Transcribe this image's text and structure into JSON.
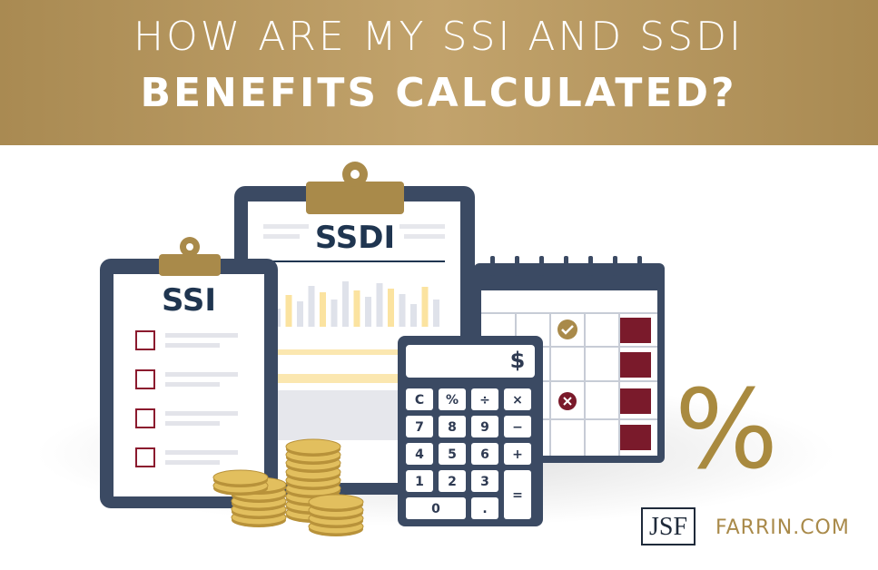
{
  "header": {
    "line1": "HOW ARE MY SSI AND SSDI",
    "line2": "BENEFITS CALCULATED?"
  },
  "clipboards": {
    "ssi": "SSI",
    "ssdi": "SSDI"
  },
  "calculator": {
    "display": "$",
    "keys": [
      "C",
      "%",
      "÷",
      "×",
      "7",
      "8",
      "9",
      "−",
      "4",
      "5",
      "6",
      "+",
      "1",
      "2",
      "3",
      "=",
      "0",
      "."
    ]
  },
  "percent": "%",
  "logo": {
    "mark": "JSF",
    "site": "FARRIN.COM"
  }
}
